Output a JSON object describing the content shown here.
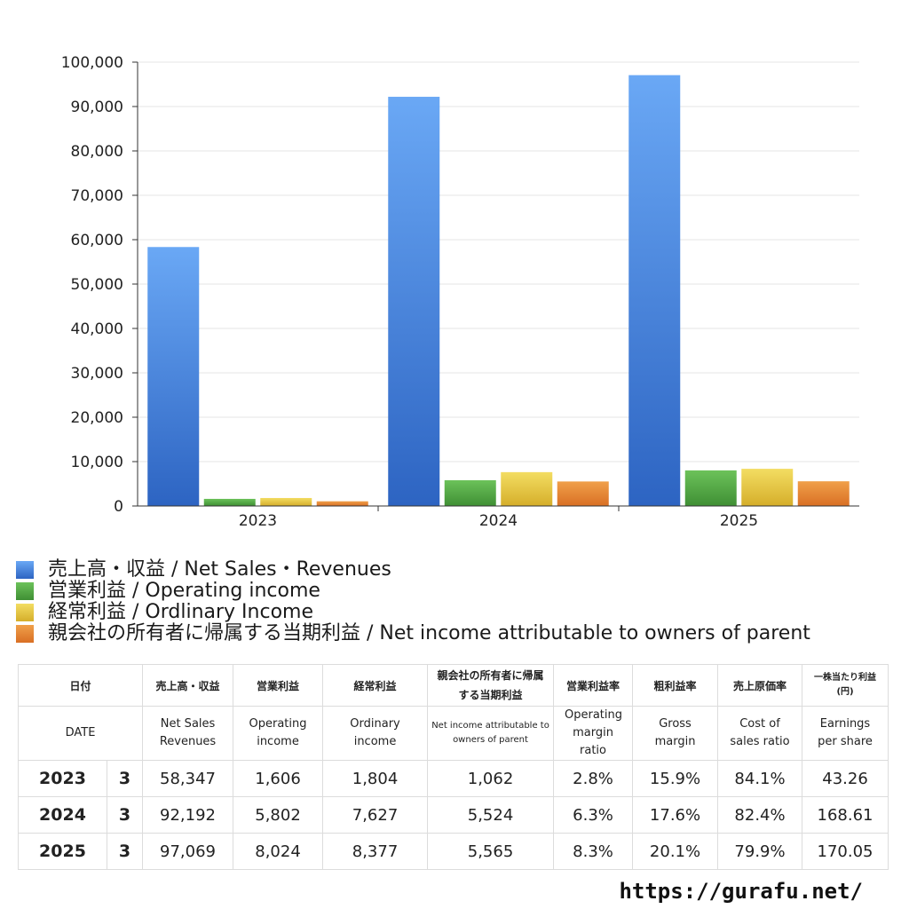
{
  "chart_data": {
    "type": "bar",
    "categories": [
      "2023",
      "2024",
      "2025"
    ],
    "series": [
      {
        "name": "売上高・収益 / Net Sales・Revenues",
        "values": [
          58347,
          92192,
          97069
        ],
        "color_top": "#6aa8f5",
        "color_bottom": "#2d64c2"
      },
      {
        "name": "営業利益 / Operating income",
        "values": [
          1606,
          5802,
          8024
        ],
        "color_top": "#6cc25a",
        "color_bottom": "#3f8f34"
      },
      {
        "name": "経常利益 / Ordlinary Income",
        "values": [
          1804,
          7627,
          8377
        ],
        "color_top": "#f3dd62",
        "color_bottom": "#d5ae2a"
      },
      {
        "name": "親会社の所有者に帰属する当期利益 / Net income attributable to owners of parent",
        "values": [
          1062,
          5524,
          5565
        ],
        "color_top": "#f0a04a",
        "color_bottom": "#d96f24"
      }
    ],
    "yticks": [
      "0",
      "10,000",
      "20,000",
      "30,000",
      "40,000",
      "50,000",
      "60,000",
      "70,000",
      "80,000",
      "90,000",
      "100,000"
    ],
    "ylim": [
      0,
      100000
    ],
    "grid": true,
    "legend_position": "bottom"
  },
  "table": {
    "header_jp": [
      "日付",
      "売上高・収益",
      "営業利益",
      "経常利益",
      "親会社の所有者に帰属する当期利益",
      "営業利益率",
      "粗利益率",
      "売上原価率",
      "一株当たり利益(円)"
    ],
    "header_en": [
      "DATE",
      "Net Sales Revenues",
      "Operating income",
      "Ordinary income",
      "Net income attributable to owners of parent",
      "Operating margin ratio",
      "Gross margin",
      "Cost of sales ratio",
      "Earnings per share"
    ],
    "rows": [
      {
        "year": "2023",
        "month": "3",
        "values": [
          "58,347",
          "1,606",
          "1,804",
          "1,062",
          "2.8%",
          "15.9%",
          "84.1%",
          "43.26"
        ]
      },
      {
        "year": "2024",
        "month": "3",
        "values": [
          "92,192",
          "5,802",
          "7,627",
          "5,524",
          "6.3%",
          "17.6%",
          "82.4%",
          "168.61"
        ]
      },
      {
        "year": "2025",
        "month": "3",
        "values": [
          "97,069",
          "8,024",
          "8,377",
          "5,565",
          "8.3%",
          "20.1%",
          "79.9%",
          "170.05"
        ]
      }
    ]
  },
  "source": "https://gurafu.net/"
}
